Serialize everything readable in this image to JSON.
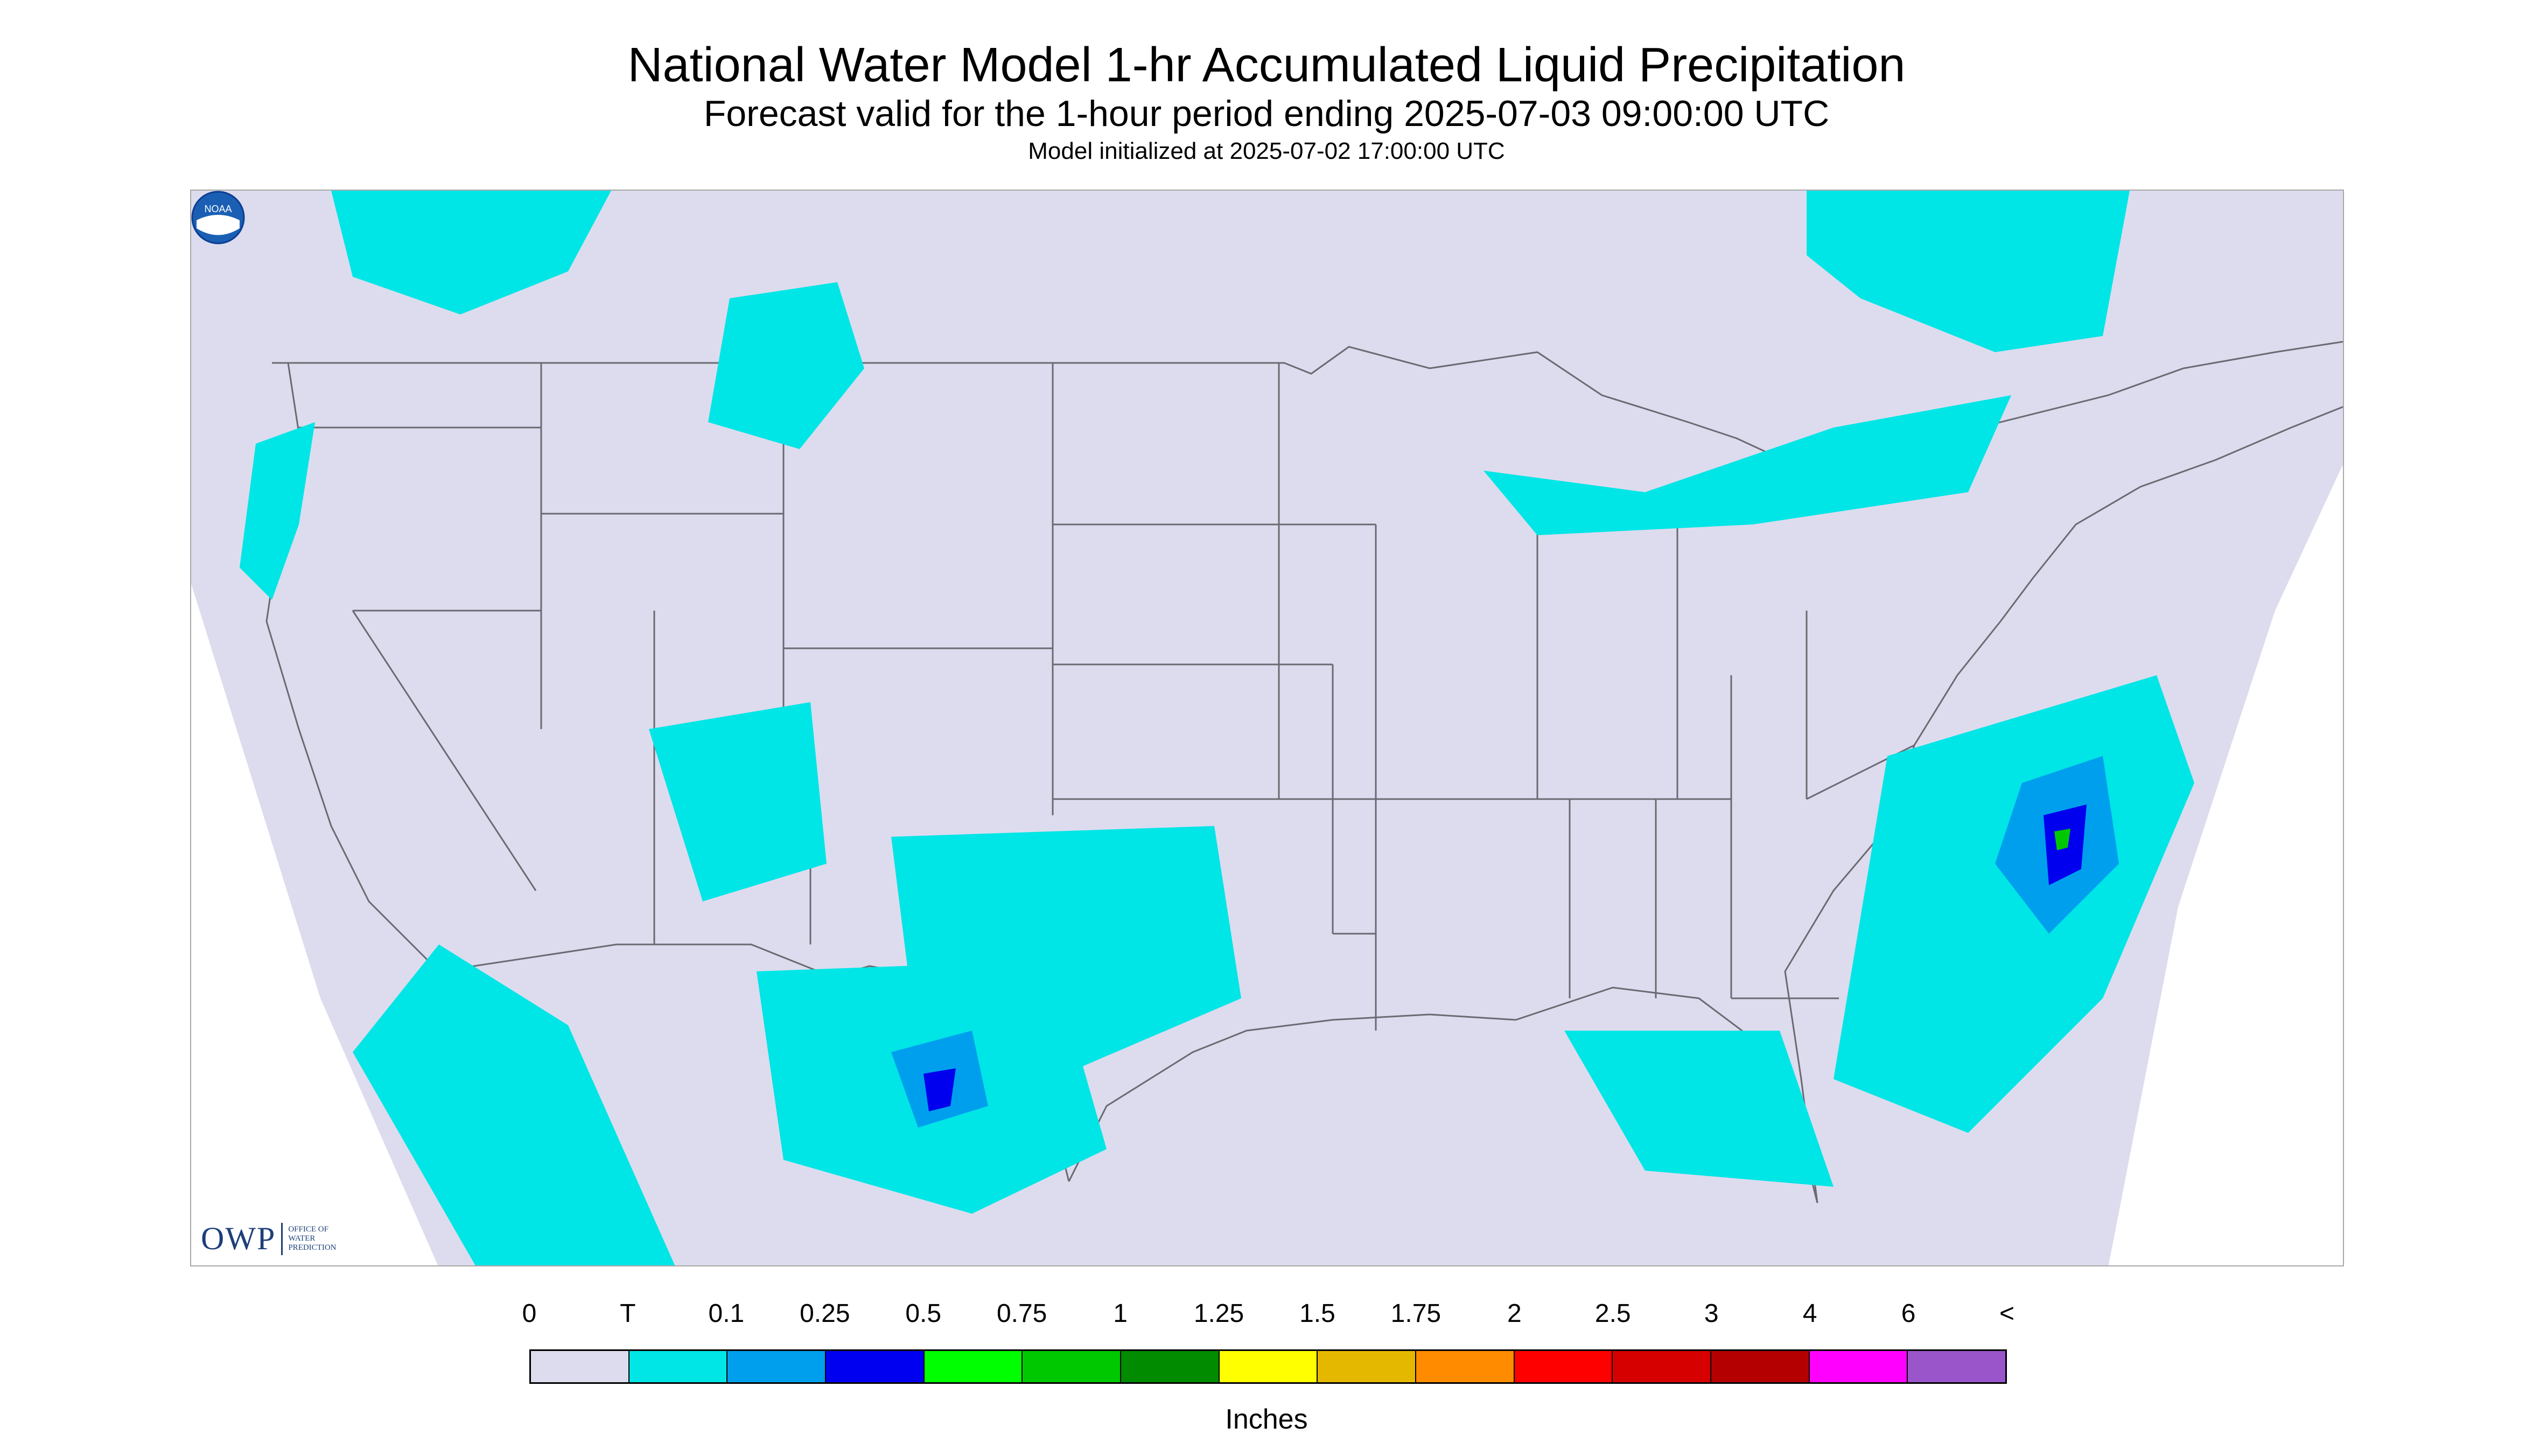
{
  "titles": {
    "main": "National Water Model 1-hr Accumulated Liquid Precipitation",
    "sub": "Forecast valid for the 1-hour period ending 2025-07-03 09:00:00 UTC",
    "init": "Model initialized at 2025-07-02 17:00:00 UTC"
  },
  "map": {
    "background_color": "#dcdcee",
    "outside_color": "#ffffff",
    "border_color": "#6a6a72",
    "precip_trace_color": "#00e5e5",
    "precip_light_color": "#009fee",
    "precip_heavy_color": "#0000ee",
    "precip_extreme_color": "#00c800"
  },
  "logos": {
    "owp_letters": "OWP",
    "owp_name_lines": [
      "Office of",
      "Water",
      "Prediction"
    ],
    "noaa_text": "NOAA"
  },
  "legend": {
    "labels": [
      "0",
      "T",
      "0.1",
      "0.25",
      "0.5",
      "0.75",
      "1",
      "1.25",
      "1.5",
      "1.75",
      "2",
      "2.5",
      "3",
      "4",
      "6",
      "<"
    ],
    "colors": [
      "#dcdcee",
      "#00e5e5",
      "#009fee",
      "#0000f0",
      "#00ff00",
      "#00c800",
      "#008b00",
      "#ffff00",
      "#e5b800",
      "#ff8c00",
      "#ff0000",
      "#d70000",
      "#b40000",
      "#ff00ff",
      "#9955c9"
    ],
    "units": "Inches"
  }
}
